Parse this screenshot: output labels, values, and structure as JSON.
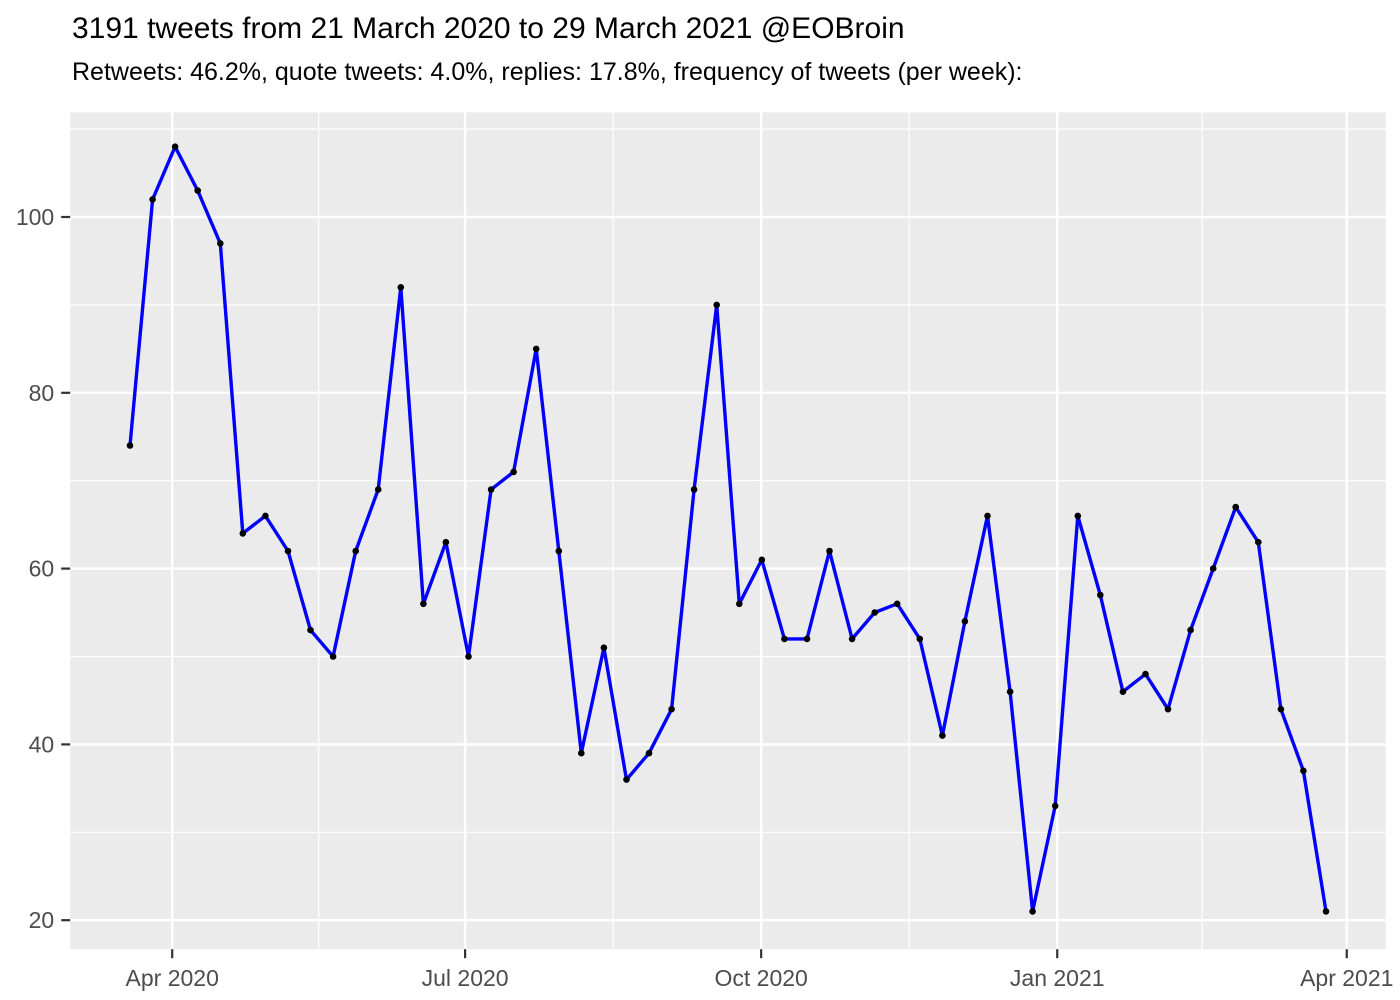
{
  "header": {
    "title": "3191 tweets from 21 March 2020 to 29 March 2021 @EOBroin",
    "subtitle": "Retweets: 46.2%, quote tweets: 4.0%, replies: 17.8%, frequency of tweets (per week):"
  },
  "colors": {
    "line": "#0000FB",
    "point": "#000000",
    "panel_background": "#EBEBEB",
    "gridline": "#FFFFFF",
    "tick_label": "#4D4D4D",
    "tick_mark": "#333333",
    "page_background": "#FFFFFF",
    "title_text": "#000000"
  },
  "chart_data": {
    "type": "line",
    "title": "3191 tweets from 21 March 2020 to 29 March 2021 @EOBroin",
    "subtitle": "Retweets: 46.2%, quote tweets: 4.0%, replies: 17.8%, frequency of tweets (per week):",
    "xlabel": "",
    "ylabel": "",
    "x_unit": "week_index",
    "series": [
      {
        "name": "tweets per week",
        "values": [
          74,
          102,
          108,
          103,
          97,
          64,
          66,
          62,
          53,
          50,
          62,
          69,
          92,
          56,
          63,
          50,
          69,
          71,
          85,
          62,
          39,
          51,
          36,
          39,
          44,
          69,
          90,
          56,
          61,
          52,
          52,
          62,
          52,
          55,
          56,
          52,
          41,
          54,
          66,
          46,
          21,
          33,
          66,
          57,
          46,
          48,
          44,
          53,
          60,
          67,
          63,
          44,
          37,
          21
        ]
      }
    ],
    "n_points": 54,
    "x_ticks": [
      {
        "label": "Apr 2020",
        "week": 1.87
      },
      {
        "label": "Jul 2020",
        "week": 14.85
      },
      {
        "label": "Oct 2020",
        "week": 27.97
      },
      {
        "label": "Jan 2021",
        "week": 41.09
      },
      {
        "label": "Apr 2021",
        "week": 53.92
      }
    ],
    "x_minor_weeks": [
      8.36,
      21.41,
      34.53,
      47.51
    ],
    "y_ticks": [
      20,
      40,
      60,
      80,
      100
    ],
    "y_minor_ticks": [
      30,
      50,
      70,
      90,
      110
    ],
    "xlim_weeks": [
      -2.65,
      55.65
    ],
    "ylim": [
      16.7,
      111.9
    ],
    "grid": "white major and minor gridlines on grey panel",
    "legend_position": "none"
  }
}
